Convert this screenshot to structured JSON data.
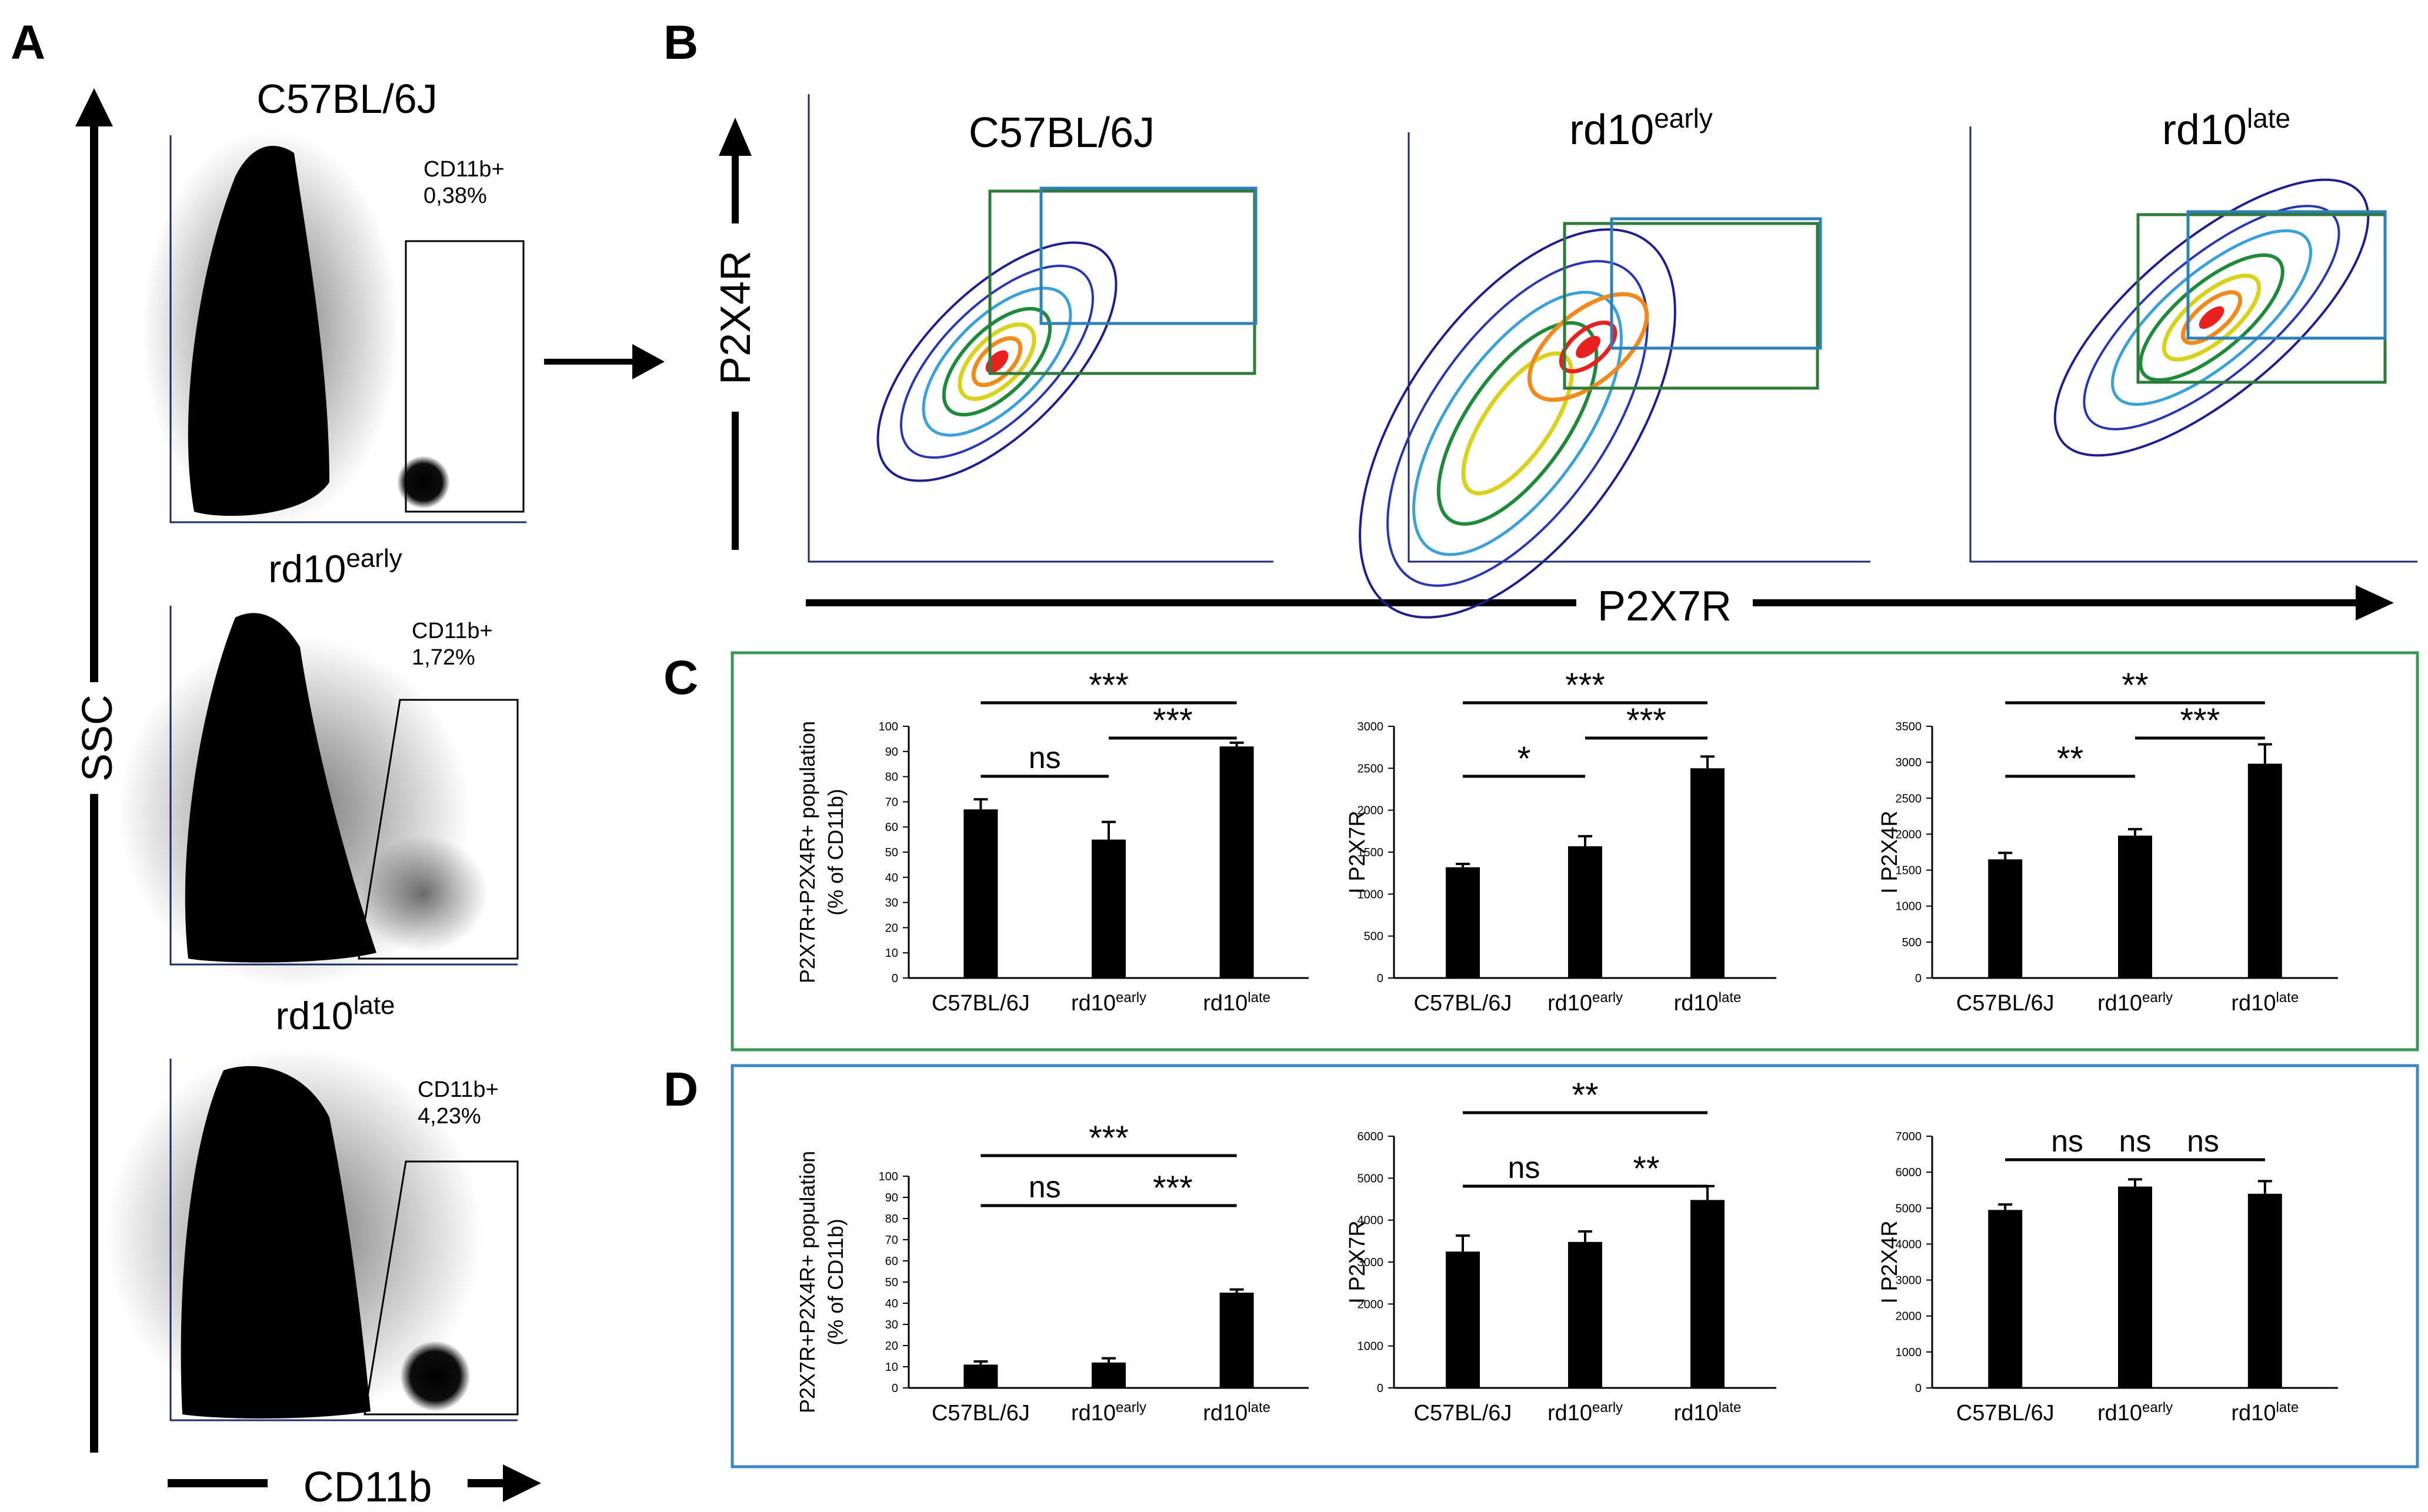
{
  "panel_letters": {
    "a": "A",
    "b": "B",
    "c": "C",
    "d": "D"
  },
  "panelA": {
    "y_axis_label": "SSC",
    "x_axis_label": "CD11b",
    "plots": [
      {
        "title": "C57BL/6J",
        "title_sup": "",
        "gate_label": "CD11b+",
        "gate_value": "0,38%"
      },
      {
        "title": "rd10",
        "title_sup": "early",
        "gate_label": "CD11b+",
        "gate_value": "1,72%"
      },
      {
        "title": "rd10",
        "title_sup": "late",
        "gate_label": "CD11b+",
        "gate_value": "4,23%"
      }
    ]
  },
  "panelB": {
    "y_axis_label": "P2X4R",
    "x_axis_label": "P2X7R",
    "plots": [
      {
        "title": "C57BL/6J",
        "title_sup": ""
      },
      {
        "title": "rd10",
        "title_sup": "early"
      },
      {
        "title": "rd10",
        "title_sup": "late"
      }
    ],
    "gate_colors": {
      "green": "#2f7a3a",
      "blue": "#2f7fb8"
    }
  },
  "colors": {
    "panelC_border": "#3a9a55",
    "panelD_border": "#3d86c4",
    "bars": "#000000",
    "contour_outer": "#1c1f8c"
  },
  "chart_data": [
    {
      "id": "C1",
      "type": "bar",
      "ylabel_line1": "P2X7R+P2X4R+ population",
      "ylabel_line2": "(% of CD11b)",
      "ylim": [
        0,
        100
      ],
      "yticks": [
        0,
        10,
        20,
        30,
        40,
        50,
        60,
        70,
        80,
        90,
        100
      ],
      "categories": [
        {
          "name": "C57BL/6J",
          "sup": ""
        },
        {
          "name": "rd10",
          "sup": "early"
        },
        {
          "name": "rd10",
          "sup": "late"
        }
      ],
      "values": [
        67,
        55,
        92
      ],
      "errors": [
        4,
        7,
        1.5
      ],
      "significance": [
        {
          "from": 0,
          "to": 2,
          "label": "***",
          "level": 3
        },
        {
          "from": 0,
          "to": 1,
          "label": "ns",
          "level": 1
        },
        {
          "from": 1,
          "to": 2,
          "label": "***",
          "level": 2
        }
      ]
    },
    {
      "id": "C2",
      "type": "bar",
      "ylabel": "I P2X7R",
      "ylim": [
        0,
        3000
      ],
      "yticks": [
        0,
        500,
        1000,
        1500,
        2000,
        2500,
        3000
      ],
      "categories": [
        {
          "name": "C57BL/6J",
          "sup": ""
        },
        {
          "name": "rd10",
          "sup": "early"
        },
        {
          "name": "rd10",
          "sup": "late"
        }
      ],
      "values": [
        1320,
        1570,
        2500
      ],
      "errors": [
        40,
        120,
        140
      ],
      "significance": [
        {
          "from": 0,
          "to": 2,
          "label": "***",
          "level": 3
        },
        {
          "from": 0,
          "to": 1,
          "label": "*",
          "level": 1
        },
        {
          "from": 1,
          "to": 2,
          "label": "***",
          "level": 2
        }
      ]
    },
    {
      "id": "C3",
      "type": "bar",
      "ylabel": "I P2X4R",
      "ylim": [
        0,
        3500
      ],
      "yticks": [
        0,
        500,
        1000,
        1500,
        2000,
        2500,
        3000,
        3500
      ],
      "categories": [
        {
          "name": "C57BL/6J",
          "sup": ""
        },
        {
          "name": "rd10",
          "sup": "early"
        },
        {
          "name": "rd10",
          "sup": "late"
        }
      ],
      "values": [
        1650,
        1980,
        2980
      ],
      "errors": [
        90,
        90,
        270
      ],
      "significance": [
        {
          "from": 0,
          "to": 2,
          "label": "**",
          "level": 3
        },
        {
          "from": 0,
          "to": 1,
          "label": "**",
          "level": 1
        },
        {
          "from": 1,
          "to": 2,
          "label": "***",
          "level": 2
        }
      ]
    },
    {
      "id": "D1",
      "type": "bar",
      "ylabel_line1": "P2X7R+P2X4R+ population",
      "ylabel_line2": "(% of CD11b)",
      "ylim": [
        0,
        100
      ],
      "yticks": [
        0,
        10,
        20,
        30,
        40,
        50,
        60,
        70,
        80,
        90,
        100
      ],
      "categories": [
        {
          "name": "C57BL/6J",
          "sup": ""
        },
        {
          "name": "rd10",
          "sup": "early"
        },
        {
          "name": "rd10",
          "sup": "late"
        }
      ],
      "values": [
        11,
        12,
        45
      ],
      "errors": [
        1.5,
        2,
        1.5
      ],
      "significance": [
        {
          "from": 0,
          "to": 2,
          "label": "***",
          "level": 3
        },
        {
          "from": 0,
          "to": 1,
          "label": "ns",
          "level": 1
        },
        {
          "from": 1,
          "to": 2,
          "label": "***",
          "level": 1
        }
      ]
    },
    {
      "id": "D2",
      "type": "bar",
      "ylabel": "I P2X7R",
      "ylim": [
        0,
        6000
      ],
      "yticks": [
        0,
        1000,
        2000,
        3000,
        4000,
        5000,
        6000
      ],
      "categories": [
        {
          "name": "C57BL/6J",
          "sup": ""
        },
        {
          "name": "rd10",
          "sup": "early"
        },
        {
          "name": "rd10",
          "sup": "late"
        }
      ],
      "values": [
        3250,
        3480,
        4480
      ],
      "errors": [
        380,
        250,
        330
      ],
      "significance": [
        {
          "from": 0,
          "to": 2,
          "label": "**",
          "level": 3
        },
        {
          "from": 0,
          "to": 1,
          "label": "ns",
          "level": 1
        },
        {
          "from": 1,
          "to": 2,
          "label": "**",
          "level": 1
        }
      ]
    },
    {
      "id": "D3",
      "type": "bar",
      "ylabel": "I P2X4R",
      "ylim": [
        0,
        7000
      ],
      "yticks": [
        0,
        1000,
        2000,
        3000,
        4000,
        5000,
        6000,
        7000
      ],
      "categories": [
        {
          "name": "C57BL/6J",
          "sup": ""
        },
        {
          "name": "rd10",
          "sup": "early"
        },
        {
          "name": "rd10",
          "sup": "late"
        }
      ],
      "values": [
        4950,
        5600,
        5400
      ],
      "errors": [
        150,
        200,
        350
      ],
      "significance": [
        {
          "from": 0,
          "to": 2,
          "label": "ns",
          "level": 3
        },
        {
          "from": 0,
          "to": 1,
          "label": "ns",
          "level": 1
        },
        {
          "from": 1,
          "to": 2,
          "label": "ns",
          "level": 1
        }
      ]
    }
  ]
}
